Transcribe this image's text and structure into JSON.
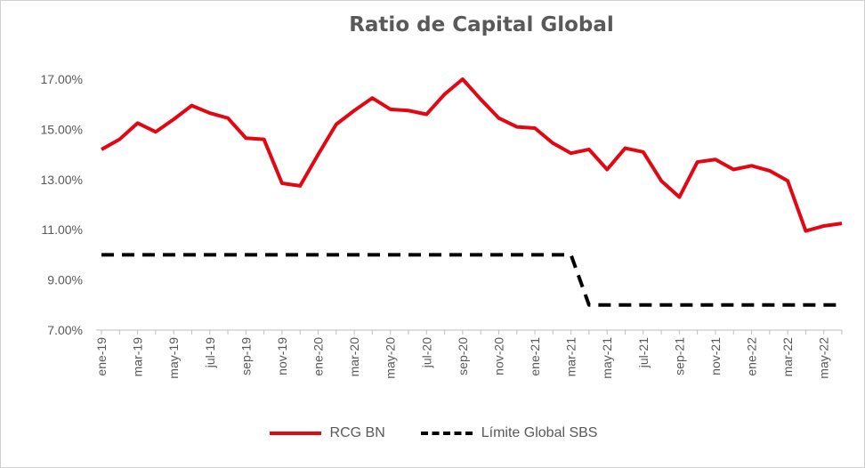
{
  "chart_data": {
    "type": "line",
    "title": "Ratio de Capital Global",
    "x": [
      "ene-19",
      "feb-19",
      "mar-19",
      "abr-19",
      "may-19",
      "jun-19",
      "jul-19",
      "ago-19",
      "sep-19",
      "oct-19",
      "nov-19",
      "dic-19",
      "ene-20",
      "feb-20",
      "mar-20",
      "abr-20",
      "may-20",
      "jun-20",
      "jul-20",
      "ago-20",
      "sep-20",
      "oct-20",
      "nov-20",
      "dic-20",
      "ene-21",
      "feb-21",
      "mar-21",
      "abr-21",
      "may-21",
      "jun-21",
      "jul-21",
      "ago-21",
      "sep-21",
      "oct-21",
      "nov-21",
      "dic-21",
      "ene-22",
      "feb-22",
      "mar-22",
      "abr-22",
      "may-22",
      "jun-22"
    ],
    "x_tick_labels": [
      "ene-19",
      "mar-19",
      "may-19",
      "jul-19",
      "sep-19",
      "nov-19",
      "ene-20",
      "mar-20",
      "may-20",
      "jul-20",
      "sep-20",
      "nov-20",
      "ene-21",
      "mar-21",
      "may-21",
      "jul-21",
      "sep-21",
      "nov-21",
      "ene-22",
      "mar-22",
      "may-22"
    ],
    "y_tick_labels": [
      "7.00%",
      "9.00%",
      "11.00%",
      "13.00%",
      "15.00%",
      "17.00%"
    ],
    "ylim": [
      7,
      17
    ],
    "series": [
      {
        "name": "RCG BN",
        "color": "#e30613",
        "style": "solid",
        "values": [
          14.2,
          14.6,
          15.25,
          14.9,
          15.4,
          15.95,
          15.65,
          15.45,
          14.65,
          14.6,
          12.85,
          12.75,
          14.0,
          15.2,
          15.75,
          16.25,
          15.8,
          15.75,
          15.6,
          16.4,
          17.0,
          16.2,
          15.45,
          15.1,
          15.05,
          14.45,
          14.05,
          14.2,
          13.4,
          14.25,
          14.1,
          12.95,
          12.3,
          13.7,
          13.8,
          13.4,
          13.55,
          13.35,
          12.95,
          10.95,
          11.15,
          11.25
        ]
      },
      {
        "name": "Límite Global SBS",
        "color": "#000000",
        "style": "dashed",
        "values": [
          10,
          10,
          10,
          10,
          10,
          10,
          10,
          10,
          10,
          10,
          10,
          10,
          10,
          10,
          10,
          10,
          10,
          10,
          10,
          10,
          10,
          10,
          10,
          10,
          10,
          10,
          10,
          8,
          8,
          8,
          8,
          8,
          8,
          8,
          8,
          8,
          8,
          8,
          8,
          8,
          8,
          8
        ]
      }
    ],
    "grid": false,
    "legend_position": "bottom"
  }
}
